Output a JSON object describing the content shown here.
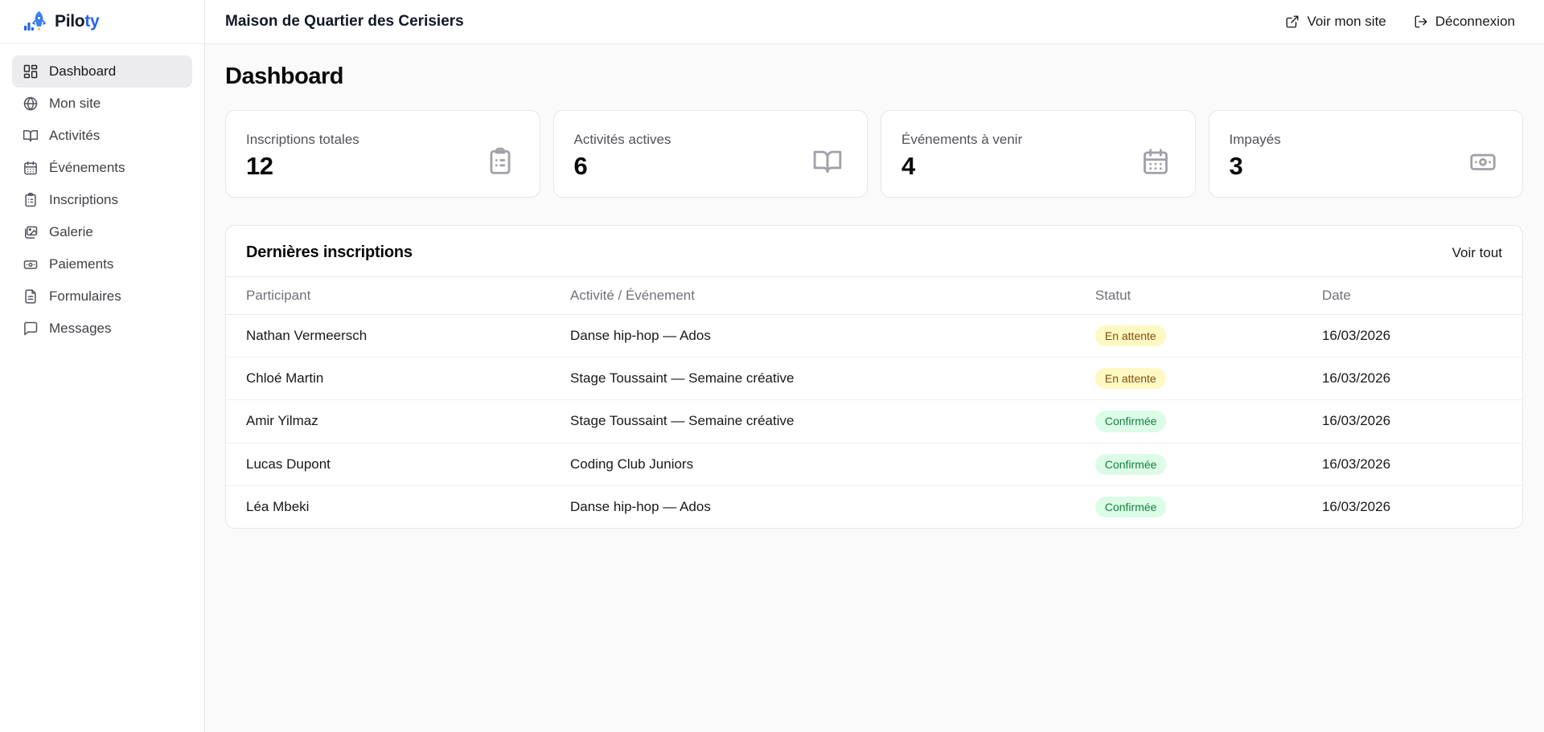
{
  "brand": {
    "name_primary": "Pilo",
    "name_accent": "ty",
    "accent_color": "#2563eb",
    "icon": "rocket-chart-icon"
  },
  "sidebar": {
    "items": [
      {
        "label": "Dashboard",
        "icon": "dashboard-icon",
        "active": true
      },
      {
        "label": "Mon site",
        "icon": "globe-icon",
        "active": false
      },
      {
        "label": "Activités",
        "icon": "book-open-icon",
        "active": false
      },
      {
        "label": "Événements",
        "icon": "calendar-icon",
        "active": false
      },
      {
        "label": "Inscriptions",
        "icon": "clipboard-icon",
        "active": false
      },
      {
        "label": "Galerie",
        "icon": "gallery-icon",
        "active": false
      },
      {
        "label": "Paiements",
        "icon": "banknote-icon",
        "active": false
      },
      {
        "label": "Formulaires",
        "icon": "file-text-icon",
        "active": false
      },
      {
        "label": "Messages",
        "icon": "message-icon",
        "active": false
      }
    ]
  },
  "topbar": {
    "title": "Maison de Quartier des Cerisiers",
    "actions": [
      {
        "label": "Voir mon site",
        "icon": "external-link-icon"
      },
      {
        "label": "Déconnexion",
        "icon": "logout-icon"
      }
    ]
  },
  "page": {
    "title": "Dashboard"
  },
  "stats": [
    {
      "label": "Inscriptions totales",
      "value": "12",
      "icon": "clipboard-list-icon"
    },
    {
      "label": "Activités actives",
      "value": "6",
      "icon": "book-open-icon"
    },
    {
      "label": "Événements à venir",
      "value": "4",
      "icon": "calendar-days-icon"
    },
    {
      "label": "Impayés",
      "value": "3",
      "icon": "banknote-icon"
    }
  ],
  "table": {
    "title": "Dernières inscriptions",
    "view_all_label": "Voir tout",
    "columns": [
      "Participant",
      "Activité / Événement",
      "Statut",
      "Date"
    ],
    "rows": [
      {
        "participant": "Nathan Vermeersch",
        "activity": "Danse hip-hop — Ados",
        "status": "En attente",
        "date": "16/03/2026"
      },
      {
        "participant": "Chloé Martin",
        "activity": "Stage Toussaint — Semaine créative",
        "status": "En attente",
        "date": "16/03/2026"
      },
      {
        "participant": "Amir Yilmaz",
        "activity": "Stage Toussaint — Semaine créative",
        "status": "Confirmée",
        "date": "16/03/2026"
      },
      {
        "participant": "Lucas Dupont",
        "activity": "Coding Club Juniors",
        "status": "Confirmée",
        "date": "16/03/2026"
      },
      {
        "participant": "Léa Mbeki",
        "activity": "Danse hip-hop — Ados",
        "status": "Confirmée",
        "date": "16/03/2026"
      }
    ],
    "status_styles": {
      "En attente": {
        "bg": "#fef9c3",
        "text": "#854d0e"
      },
      "Confirmée": {
        "bg": "#dcfce7",
        "text": "#15803d"
      }
    }
  }
}
